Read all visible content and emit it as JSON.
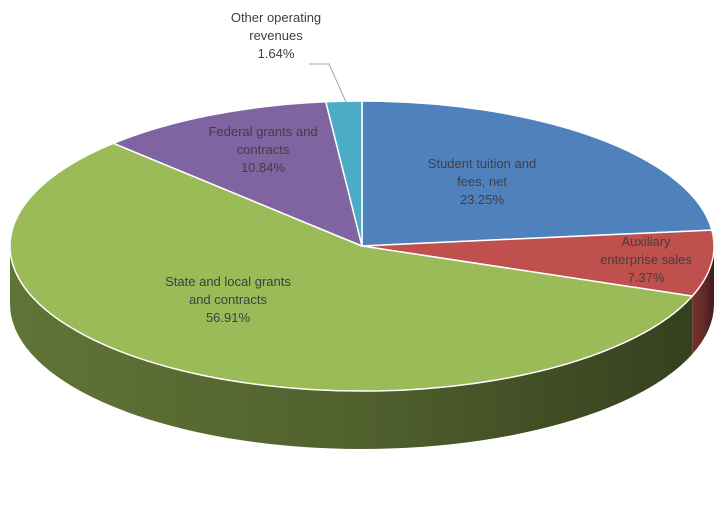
{
  "chart_data": {
    "type": "pie",
    "style": "3d",
    "title": "",
    "slices": [
      {
        "name": "Student tuition and fees, net",
        "value": 23.25,
        "label": "23.25%",
        "color": "#4f81bd",
        "label_lines": [
          "Student tuition and",
          "fees, net",
          "23.25%"
        ]
      },
      {
        "name": "Auxiliary enterprise sales",
        "value": 7.37,
        "label": "7.37%",
        "color": "#c0504d",
        "label_lines": [
          "Auxiliary",
          "enterprise sales",
          "7.37%"
        ]
      },
      {
        "name": "State and local grants and contracts",
        "value": 56.91,
        "label": "56.91%",
        "color": "#9bbb59",
        "label_lines": [
          "State and local grants",
          "and contracts",
          "56.91%"
        ]
      },
      {
        "name": "Federal grants and contracts",
        "value": 10.84,
        "label": "10.84%",
        "color": "#8064a2",
        "label_lines": [
          "Federal grants and",
          "contracts",
          "10.84%"
        ]
      },
      {
        "name": "Other operating revenues",
        "value": 1.64,
        "label": "1.64%",
        "color": "#4bacc6",
        "label_lines": [
          "Other operating",
          "revenues",
          "1.64%"
        ]
      }
    ],
    "legend": "none",
    "data_labels": "category-and-percent"
  }
}
